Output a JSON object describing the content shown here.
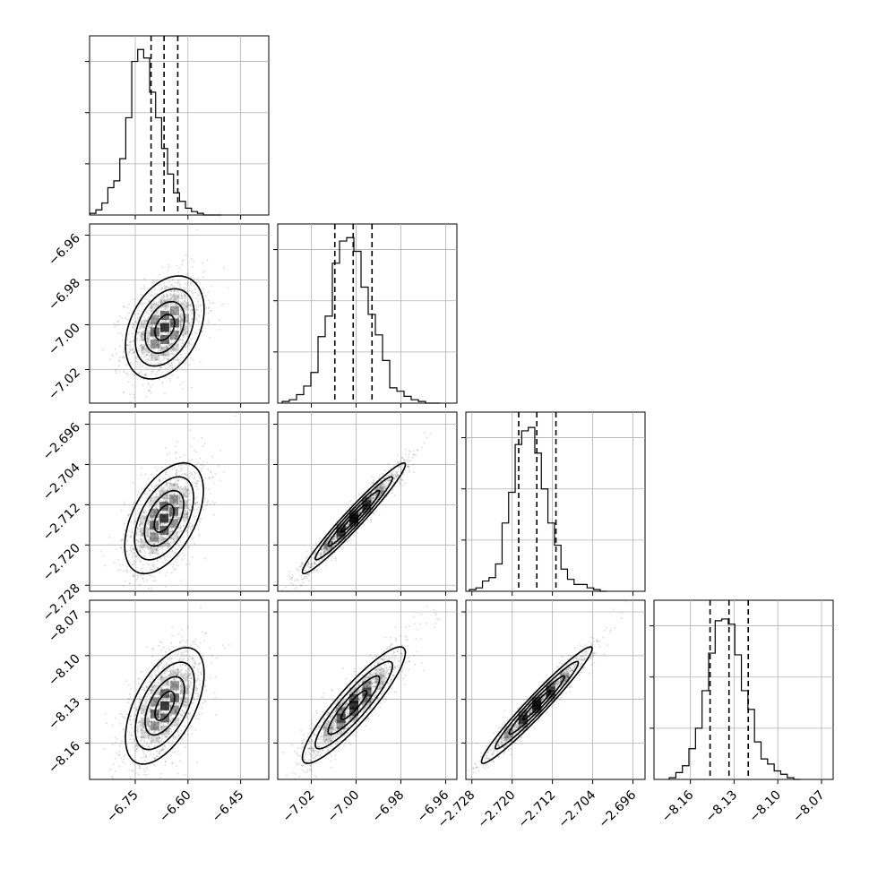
{
  "chart_data": {
    "type": "corner",
    "parameters": [
      {
        "name": "param_0",
        "xlim": [
          -6.88,
          -6.37
        ],
        "ticks": [
          -6.75,
          -6.6,
          -6.45
        ],
        "tick_labels": [
          "−6.75",
          "−6.60",
          "−6.45"
        ],
        "quantiles": [
          -6.705,
          -6.668,
          -6.629
        ],
        "hist_edges": [
          -6.879,
          -6.862,
          -6.845,
          -6.828,
          -6.811,
          -6.794,
          -6.777,
          -6.76,
          -6.743,
          -6.726,
          -6.709,
          -6.692,
          -6.675,
          -6.658,
          -6.641,
          -6.624,
          -6.607,
          -6.59,
          -6.573,
          -6.556,
          -6.539,
          -6.522,
          -6.505
        ],
        "hist_values": [
          0.01,
          0.03,
          0.07,
          0.16,
          0.2,
          0.33,
          0.57,
          0.9,
          0.97,
          0.92,
          0.72,
          0.57,
          0.39,
          0.24,
          0.13,
          0.08,
          0.04,
          0.02,
          0.01,
          0.0,
          0.0,
          0.0
        ],
        "hist_yticks": [
          0.3,
          0.6,
          0.9
        ]
      },
      {
        "name": "param_1",
        "xlim": [
          -7.035,
          -6.955
        ],
        "ticks": [
          -7.02,
          -7.0,
          -6.98,
          -6.96
        ],
        "tick_labels": [
          "−7.02",
          "−7.00",
          "−6.98",
          "−6.96"
        ],
        "quantiles": [
          -7.0095,
          -7.0013,
          -6.9929
        ],
        "hist_edges": [
          -7.033,
          -7.0298,
          -7.0266,
          -7.0234,
          -7.0202,
          -7.017,
          -7.0138,
          -7.0106,
          -7.0074,
          -7.0042,
          -7.001,
          -6.9978,
          -6.9946,
          -6.9914,
          -6.9882,
          -6.985,
          -6.9818,
          -6.9786,
          -6.9754,
          -6.9722,
          -6.969,
          -6.9658,
          -6.9626
        ],
        "hist_values": [
          0.01,
          0.02,
          0.05,
          0.1,
          0.18,
          0.39,
          0.51,
          0.82,
          0.95,
          0.97,
          0.89,
          0.68,
          0.52,
          0.4,
          0.25,
          0.09,
          0.07,
          0.04,
          0.02,
          0.01,
          0.0,
          0.0
        ],
        "hist_yticks": [
          0.3,
          0.6,
          0.9
        ]
      },
      {
        "name": "param_2",
        "xlim": [
          -2.7292,
          -2.6936
        ],
        "ticks": [
          -2.728,
          -2.72,
          -2.712,
          -2.704,
          -2.696
        ],
        "tick_labels": [
          "−2.728",
          "−2.720",
          "−2.712",
          "−2.704",
          "−2.696"
        ],
        "quantiles": [
          -2.7187,
          -2.7151,
          -2.7113
        ],
        "hist_edges": [
          -2.7285,
          -2.7272,
          -2.7259,
          -2.7246,
          -2.7233,
          -2.722,
          -2.7207,
          -2.7194,
          -2.7181,
          -2.7168,
          -2.7155,
          -2.7142,
          -2.7129,
          -2.7116,
          -2.7103,
          -2.709,
          -2.7077,
          -2.7064,
          -2.7051,
          -2.7038,
          -2.7025,
          -2.7012
        ],
        "hist_values": [
          0.01,
          0.02,
          0.06,
          0.08,
          0.16,
          0.4,
          0.58,
          0.86,
          0.94,
          0.96,
          0.81,
          0.6,
          0.4,
          0.27,
          0.13,
          0.07,
          0.04,
          0.04,
          0.02,
          0.01,
          0.0
        ],
        "hist_yticks": [
          0.3,
          0.6,
          0.9
        ]
      },
      {
        "name": "param_3",
        "xlim": [
          -8.185,
          -8.062
        ],
        "ticks": [
          -8.16,
          -8.13,
          -8.1,
          -8.07
        ],
        "tick_labels": [
          "−8.16",
          "−8.13",
          "−8.10",
          "−8.07"
        ],
        "quantiles": [
          -8.1465,
          -8.1335,
          -8.1203
        ],
        "hist_edges": [
          -8.1745,
          -8.17,
          -8.1655,
          -8.161,
          -8.1565,
          -8.152,
          -8.1475,
          -8.143,
          -8.1385,
          -8.134,
          -8.1295,
          -8.125,
          -8.1205,
          -8.116,
          -8.1115,
          -8.107,
          -8.1025,
          -8.098,
          -8.0935,
          -8.089,
          -8.0845
        ],
        "hist_values": [
          0.01,
          0.04,
          0.08,
          0.18,
          0.3,
          0.52,
          0.74,
          0.93,
          0.94,
          0.91,
          0.73,
          0.52,
          0.41,
          0.22,
          0.12,
          0.09,
          0.05,
          0.03,
          0.01,
          0.0
        ],
        "hist_yticks": [
          0.3,
          0.6,
          0.9
        ]
      }
    ],
    "ylim_ticks": {
      "param_1": {
        "ticks": [
          -6.96,
          -6.98,
          -7.0,
          -7.02
        ],
        "tick_labels": [
          "−6.96",
          "−6.98",
          "−7.00",
          "−7.02"
        ]
      },
      "param_2": {
        "ticks": [
          -2.696,
          -2.704,
          -2.712,
          -2.72,
          -2.728
        ],
        "tick_labels": [
          "−2.696",
          "−2.704",
          "−2.712",
          "−2.720",
          "−2.728"
        ]
      },
      "param_3": {
        "ticks": [
          -8.07,
          -8.1,
          -8.13,
          -8.16
        ],
        "tick_labels": [
          "−8.07",
          "−8.10",
          "−8.13",
          "−8.16"
        ]
      }
    },
    "pairs": [
      {
        "x": "param_0",
        "y": "param_1",
        "center": [
          -6.666,
          -7.0012
        ],
        "sx": 0.056,
        "sy": 0.0115,
        "rho": 0.35
      },
      {
        "x": "param_0",
        "y": "param_2",
        "center": [
          -6.668,
          -2.7147
        ],
        "sx": 0.056,
        "sy": 0.0055,
        "rho": 0.5
      },
      {
        "x": "param_0",
        "y": "param_3",
        "center": [
          -6.666,
          -8.1345
        ],
        "sx": 0.056,
        "sy": 0.02,
        "rho": 0.55
      },
      {
        "x": "param_1",
        "y": "param_2",
        "center": [
          -7.001,
          -2.7147
        ],
        "sx": 0.0115,
        "sy": 0.0055,
        "rho": 0.97
      },
      {
        "x": "param_1",
        "y": "param_3",
        "center": [
          -7.001,
          -8.134
        ],
        "sx": 0.0115,
        "sy": 0.02,
        "rho": 0.9
      },
      {
        "x": "param_2",
        "y": "param_3",
        "center": [
          -2.7151,
          -8.134
        ],
        "sx": 0.0055,
        "sy": 0.02,
        "rho": 0.97
      }
    ],
    "contour_levels_sigma": [
      0.5,
      1.0,
      1.5,
      2.0
    ],
    "scatter_color": "#000000",
    "line_color": "#000000",
    "grid": true
  }
}
